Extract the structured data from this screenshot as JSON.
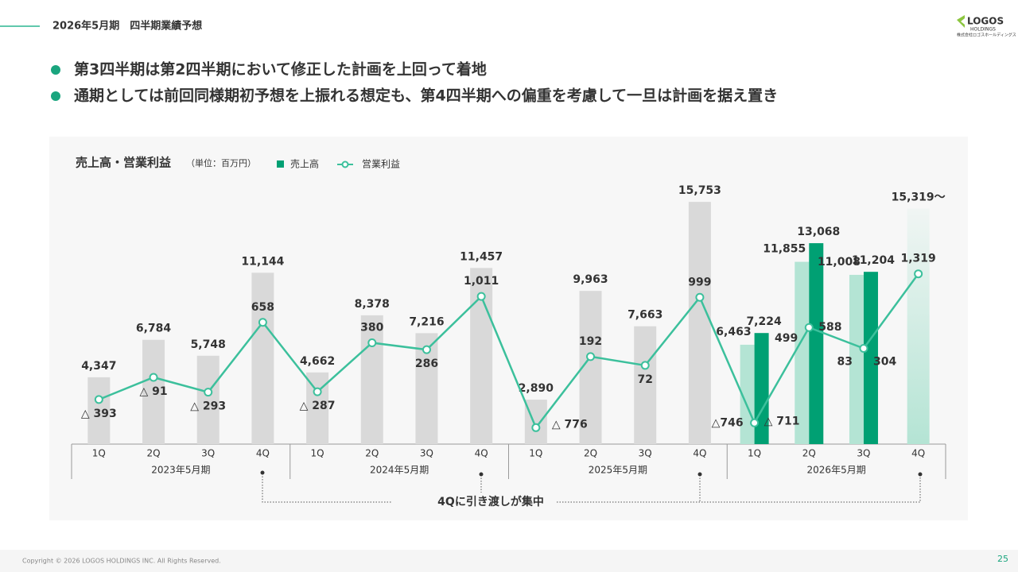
{
  "header": {
    "title": "2026年5月期　四半期業績予想",
    "bullets": [
      "第3四半期は第2四半期において修正した計画を上回って着地",
      "通期としては前回同様期初予想を上振れる想定も、第4四半期への偏重を考慮して一旦は計画を据え置き"
    ]
  },
  "logo": {
    "name": "LOGOS",
    "sub": "HOLDINGS",
    "company": "株式会社ロゴスホールディングス"
  },
  "footer": {
    "copyright": "Copyright © 2026 LOGOS HOLDINGS INC. All Rights Reserved.",
    "page": "25"
  },
  "chart_data": {
    "type": "bar",
    "title": "売上高・営業利益",
    "unit": "（単位：百万円）",
    "categories": [
      "1Q",
      "2Q",
      "3Q",
      "4Q",
      "1Q",
      "2Q",
      "3Q",
      "4Q",
      "1Q",
      "2Q",
      "3Q",
      "4Q",
      "1Q",
      "2Q",
      "3Q",
      "4Q"
    ],
    "groups": [
      "2023年5月期",
      "2024年5月期",
      "2025年5月期",
      "2026年5月期"
    ],
    "annotation": "4Qに引き渡しが集中",
    "ylim": [
      0,
      17000
    ],
    "y2lim": [
      -1000,
      2560
    ],
    "series": [
      {
        "name": "売上高",
        "type": "bar",
        "color": "#00a073",
        "colors": [
          "#d9d9d9",
          "#d9d9d9",
          "#d9d9d9",
          "#d9d9d9",
          "#d9d9d9",
          "#d9d9d9",
          "#d9d9d9",
          "#d9d9d9",
          "#d9d9d9",
          "#d9d9d9",
          "#d9d9d9",
          "#d9d9d9",
          "#00a073",
          "#00a073",
          "#00a073",
          null
        ],
        "values": [
          4347,
          6784,
          5748,
          11144,
          4662,
          8378,
          7216,
          11457,
          2890,
          9963,
          7663,
          15753,
          7224,
          13068,
          11204,
          null
        ],
        "value_labels": [
          "4,347",
          "6,784",
          "5,748",
          "11,144",
          "4,662",
          "8,378",
          "7,216",
          "11,457",
          "2,890",
          "9,963",
          "7,663",
          "15,753",
          "7,224",
          "13,068",
          "11,204",
          null
        ]
      },
      {
        "type": "bar",
        "color": "#b4e4d4",
        "values": [
          null,
          null,
          null,
          null,
          null,
          null,
          null,
          null,
          null,
          null,
          null,
          null,
          6463,
          11855,
          11008,
          15319
        ],
        "value_labels": [
          null,
          null,
          null,
          null,
          null,
          null,
          null,
          null,
          null,
          null,
          null,
          null,
          "6,463",
          "11,855",
          "11,008",
          "15,319〜"
        ]
      },
      {
        "name": "営業利益",
        "type": "line",
        "axis": "y2",
        "color": "#3cc09c",
        "values": [
          -393,
          -91,
          -293,
          658,
          -287,
          380,
          286,
          1011,
          -776,
          192,
          72,
          999,
          -711,
          588,
          304,
          1319
        ],
        "value_labels": [
          "△ 393",
          "△ 91",
          "△ 293",
          "658",
          "△ 287",
          "380",
          "286",
          "1,011",
          "△ 776",
          "192",
          "72",
          "999",
          "△ 711",
          "588",
          "304",
          "1,319"
        ]
      },
      {
        "type": "labels",
        "axis": "y2",
        "values": [
          null,
          null,
          null,
          null,
          null,
          null,
          null,
          null,
          null,
          null,
          null,
          null,
          -746,
          499,
          83,
          null
        ],
        "value_labels": [
          null,
          null,
          null,
          null,
          null,
          null,
          null,
          null,
          null,
          null,
          null,
          null,
          "△746",
          "499",
          "83",
          null
        ]
      }
    ]
  }
}
